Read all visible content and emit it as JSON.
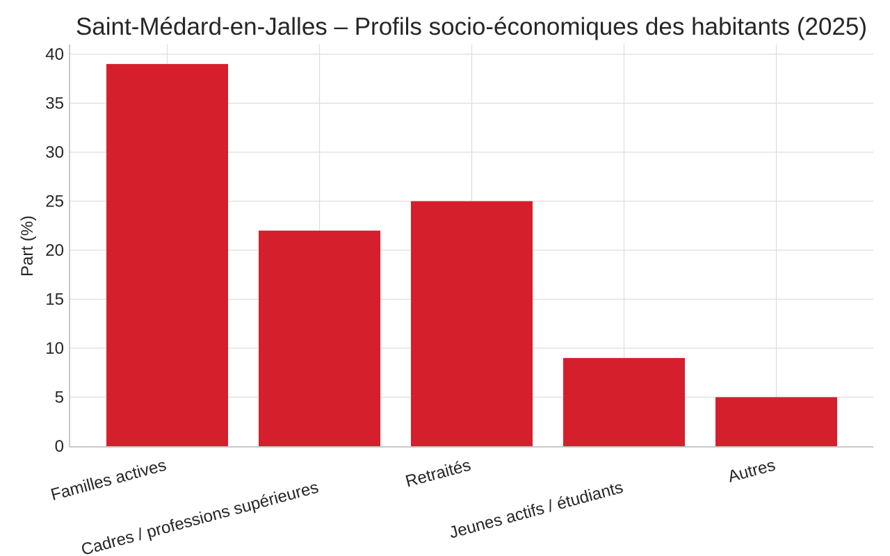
{
  "chart_data": {
    "type": "bar",
    "title": "Saint-Médard-en-Jalles – Profils socio-économiques des habitants (2025)",
    "xlabel": "",
    "ylabel": "Part (%)",
    "categories": [
      "Familles actives",
      "Cadres / professions supérieures",
      "Retraités",
      "Jeunes actifs / étudiants",
      "Autres"
    ],
    "values": [
      39,
      22,
      25,
      9,
      5
    ],
    "ylim": [
      0,
      41
    ],
    "yticks": [
      0,
      5,
      10,
      15,
      20,
      25,
      30,
      35,
      40
    ],
    "grid": true,
    "legend": null,
    "colors": {
      "bar": "#D61F2C",
      "grid": "#DDDDDD",
      "axis": "#C8C8C8",
      "text": "#262626"
    }
  }
}
